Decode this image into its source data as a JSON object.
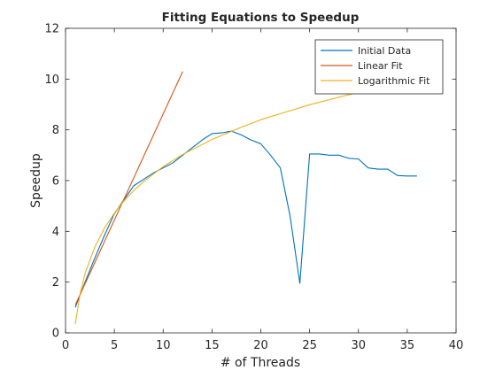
{
  "chart_data": {
    "type": "line",
    "title": "Fitting Equations to Speedup",
    "xlabel": "# of Threads",
    "ylabel": "Speedup",
    "xlim": [
      0,
      40
    ],
    "ylim": [
      0,
      12
    ],
    "xticks": [
      0,
      5,
      10,
      15,
      20,
      25,
      30,
      35,
      40
    ],
    "yticks": [
      0,
      2,
      4,
      6,
      8,
      10,
      12
    ],
    "grid": false,
    "legend_position": "top-right",
    "series": [
      {
        "name": "Initial Data",
        "color": "#0072bd",
        "x": [
          1,
          2,
          3,
          4,
          5,
          6,
          7,
          8,
          9,
          10,
          11,
          12,
          13,
          14,
          15,
          16,
          17,
          18,
          19,
          20,
          21,
          22,
          23,
          24,
          25,
          26,
          27,
          28,
          29,
          30,
          31,
          32,
          33,
          34,
          35,
          36
        ],
        "y": [
          1.0,
          2.0,
          2.95,
          3.85,
          4.7,
          5.25,
          5.8,
          6.05,
          6.3,
          6.5,
          6.7,
          7.0,
          7.3,
          7.6,
          7.85,
          7.88,
          7.95,
          7.8,
          7.6,
          7.45,
          7.0,
          6.5,
          4.6,
          1.95,
          7.05,
          7.05,
          7.0,
          7.0,
          6.88,
          6.85,
          6.5,
          6.45,
          6.45,
          6.2,
          6.18,
          6.18
        ]
      },
      {
        "name": "Linear Fit",
        "color": "#d95319",
        "x": [
          1,
          12
        ],
        "y": [
          1.1,
          10.3
        ]
      },
      {
        "name": "Logarithmic Fit",
        "color": "#edb120",
        "x": [
          1,
          1.5,
          2,
          3,
          4,
          5,
          6,
          7,
          8,
          10,
          12,
          15,
          18,
          20,
          25,
          30,
          35,
          37
        ],
        "y": [
          0.35,
          1.55,
          2.34,
          3.38,
          4.13,
          4.72,
          5.2,
          5.61,
          5.96,
          6.55,
          7.03,
          7.62,
          8.1,
          8.4,
          8.99,
          9.48,
          9.89,
          10.05
        ]
      }
    ]
  }
}
